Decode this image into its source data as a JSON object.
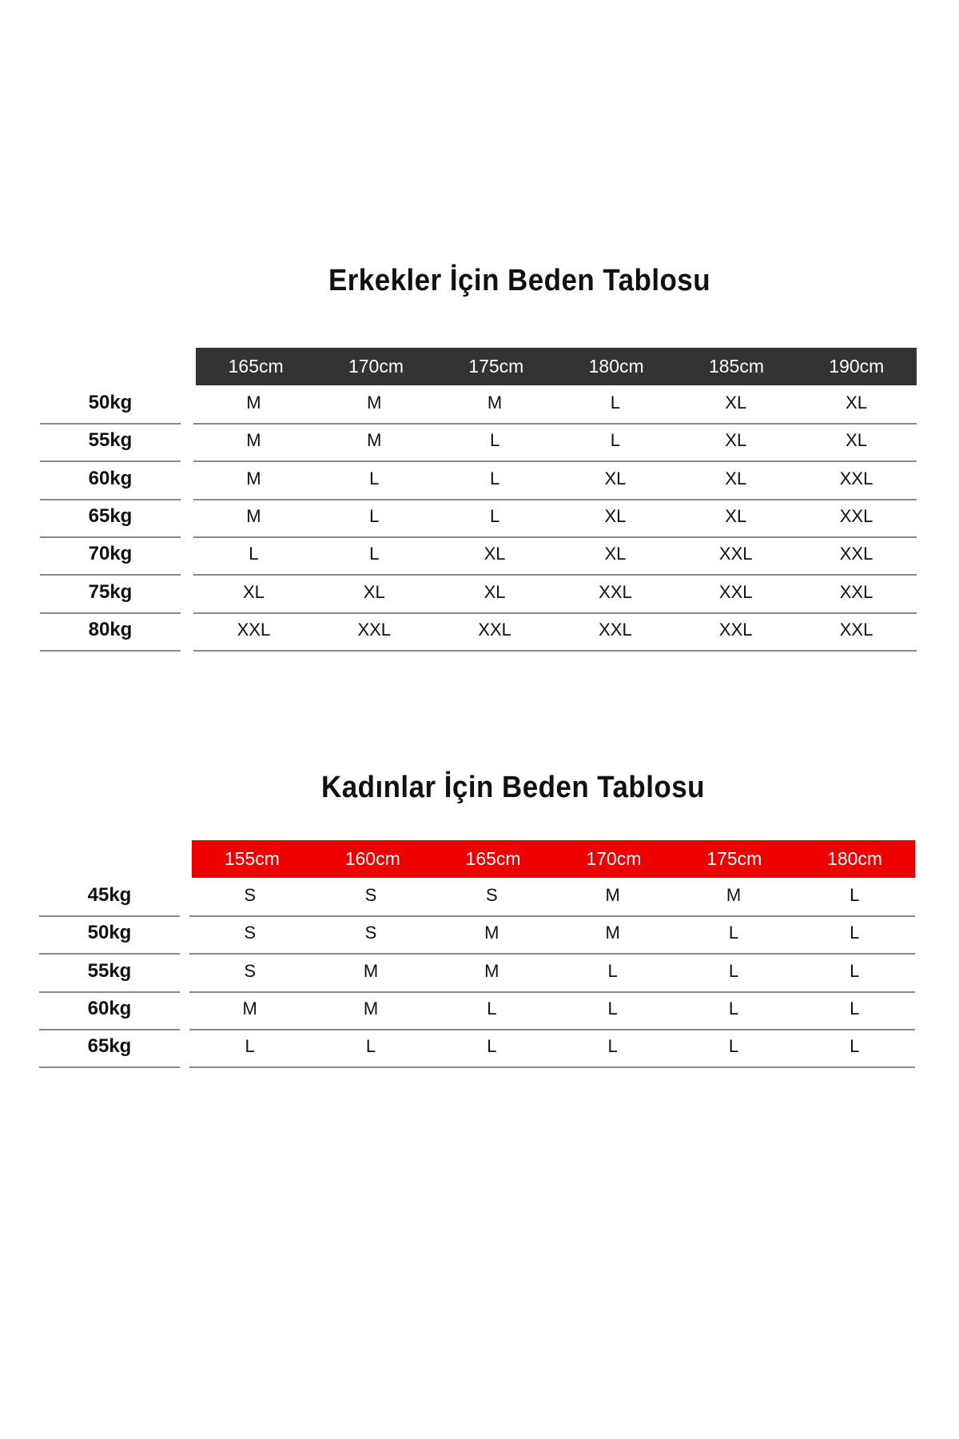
{
  "men": {
    "title": "Erkekler İçin Beden Tablosu",
    "header_color": "#333333",
    "heights": [
      "165cm",
      "170cm",
      "175cm",
      "180cm",
      "185cm",
      "190cm"
    ],
    "rows": [
      {
        "weight": "50kg",
        "sizes": [
          "M",
          "M",
          "M",
          "L",
          "XL",
          "XL"
        ]
      },
      {
        "weight": "55kg",
        "sizes": [
          "M",
          "M",
          "L",
          "L",
          "XL",
          "XL"
        ]
      },
      {
        "weight": "60kg",
        "sizes": [
          "M",
          "L",
          "L",
          "XL",
          "XL",
          "XXL"
        ]
      },
      {
        "weight": "65kg",
        "sizes": [
          "M",
          "L",
          "L",
          "XL",
          "XL",
          "XXL"
        ]
      },
      {
        "weight": "70kg",
        "sizes": [
          "L",
          "L",
          "XL",
          "XL",
          "XXL",
          "XXL"
        ]
      },
      {
        "weight": "75kg",
        "sizes": [
          "XL",
          "XL",
          "XL",
          "XXL",
          "XXL",
          "XXL"
        ]
      },
      {
        "weight": "80kg",
        "sizes": [
          "XXL",
          "XXL",
          "XXL",
          "XXL",
          "XXL",
          "XXL"
        ]
      }
    ]
  },
  "women": {
    "title": "Kadınlar İçin Beden Tablosu",
    "header_color": "#ee0000",
    "heights": [
      "155cm",
      "160cm",
      "165cm",
      "170cm",
      "175cm",
      "180cm"
    ],
    "rows": [
      {
        "weight": "45kg",
        "sizes": [
          "S",
          "S",
          "S",
          "M",
          "M",
          "L"
        ]
      },
      {
        "weight": "50kg",
        "sizes": [
          "S",
          "S",
          "M",
          "M",
          "L",
          "L"
        ]
      },
      {
        "weight": "55kg",
        "sizes": [
          "S",
          "M",
          "M",
          "L",
          "L",
          "L"
        ]
      },
      {
        "weight": "60kg",
        "sizes": [
          "M",
          "M",
          "L",
          "L",
          "L",
          "L"
        ]
      },
      {
        "weight": "65kg",
        "sizes": [
          "L",
          "L",
          "L",
          "L",
          "L",
          "L"
        ]
      }
    ]
  }
}
